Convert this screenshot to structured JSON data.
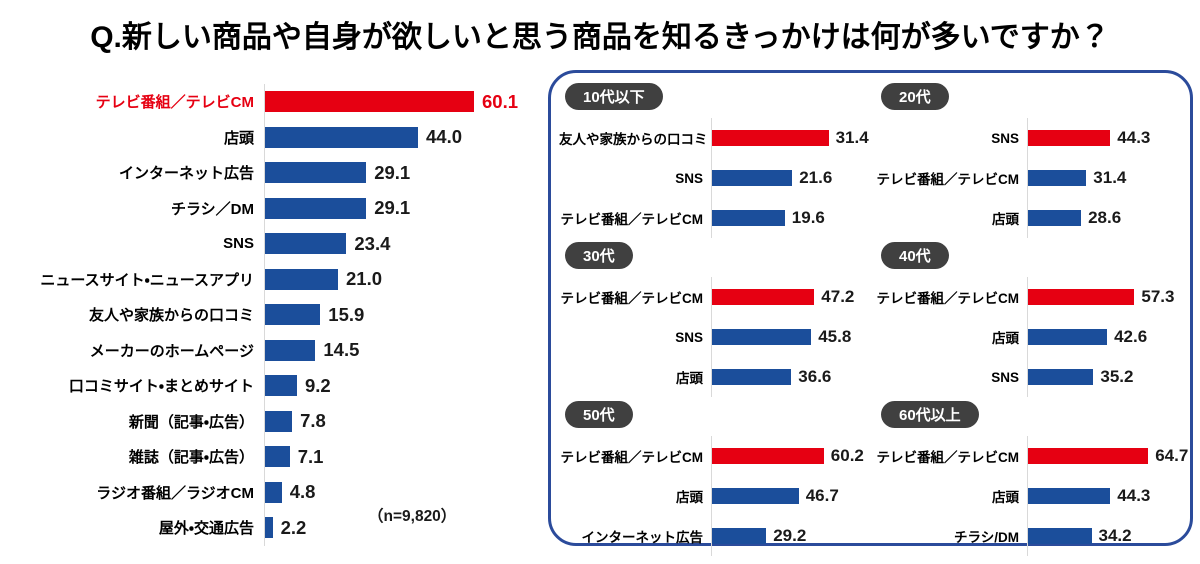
{
  "title": "Q.新しい商品や自身が欲しいと思う商品を知るきっかけは何が多いですか？",
  "colors": {
    "bar_red": "#e60012",
    "bar_blue": "#1b4e9b",
    "panel_border": "#2b4b9b",
    "badge_bg": "#404040",
    "axis_line": "#d9d9d9"
  },
  "chart_data": {
    "type": "bar",
    "orientation": "horizontal",
    "title": "Q.新しい商品や自身が欲しいと思う商品を知るきっかけは何が多いですか？",
    "overall": {
      "note": "（n=9,820）",
      "xmax": 65,
      "highlight_index": 0,
      "categories": [
        "テレビ番組／テレビCM",
        "店頭",
        "インターネット広告",
        "チラシ／DM",
        "SNS",
        "ニュースサイト・ニュースアプリ",
        "友人や家族からの口コミ",
        "メーカーのホームページ",
        "口コミサイト・まとめサイト",
        "新聞（記事・広告）",
        "雑誌（記事・広告）",
        "ラジオ番組／ラジオCM",
        "屋外・交通広告"
      ],
      "values": [
        60.1,
        44.0,
        29.1,
        29.1,
        23.4,
        21.0,
        15.9,
        14.5,
        9.2,
        7.8,
        7.1,
        4.8,
        2.2
      ]
    },
    "age_groups": [
      {
        "label": "10代以下",
        "xmax": 35,
        "highlight_index": 0,
        "categories": [
          "友人や家族からの口コミ",
          "SNS",
          "テレビ番組／テレビCM"
        ],
        "values": [
          31.4,
          21.6,
          19.6
        ]
      },
      {
        "label": "20代",
        "xmax": 70,
        "highlight_index": 0,
        "categories": [
          "SNS",
          "テレビ番組／テレビCM",
          "店頭"
        ],
        "values": [
          44.3,
          31.4,
          28.6
        ]
      },
      {
        "label": "30代",
        "xmax": 60,
        "highlight_index": 0,
        "categories": [
          "テレビ番組／テレビCM",
          "SNS",
          "店頭"
        ],
        "values": [
          47.2,
          45.8,
          36.6
        ]
      },
      {
        "label": "40代",
        "xmax": 70,
        "highlight_index": 0,
        "categories": [
          "テレビ番組／テレビCM",
          "店頭",
          "SNS"
        ],
        "values": [
          57.3,
          42.6,
          35.2
        ]
      },
      {
        "label": "50代",
        "xmax": 70,
        "highlight_index": 0,
        "categories": [
          "テレビ番組／テレビCM",
          "店頭",
          "インターネット広告"
        ],
        "values": [
          60.2,
          46.7,
          29.2
        ]
      },
      {
        "label": "60代以上",
        "xmax": 70,
        "highlight_index": 0,
        "categories": [
          "テレビ番組／テレビCM",
          "店頭",
          "チラシ/DM"
        ],
        "values": [
          64.7,
          44.3,
          34.2
        ]
      }
    ]
  }
}
